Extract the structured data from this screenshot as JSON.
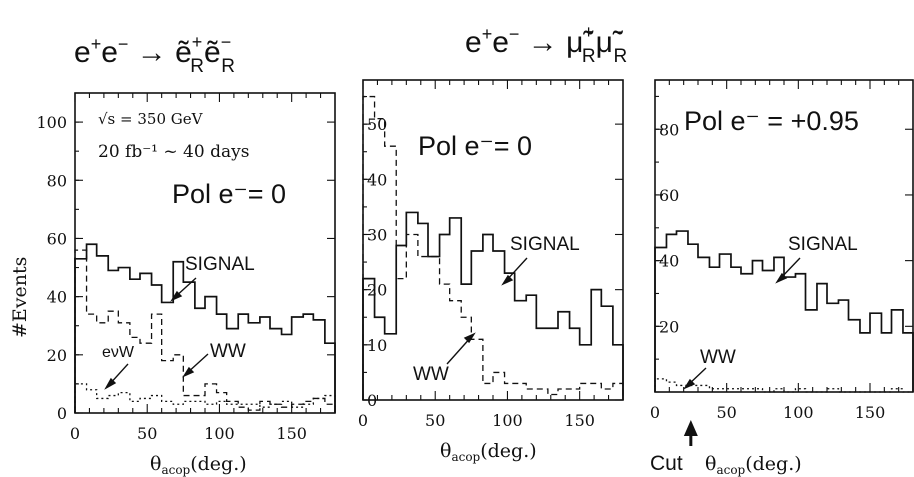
{
  "titles": [
    {
      "base": "e",
      "sup1": "+",
      "mid": "e",
      "sup2": "−",
      "arrow": " → ",
      "p1": "ẽ",
      "p1sup": "+",
      "p1sub": "R",
      "p2": "ẽ",
      "p2sup": "−",
      "p2sub": "R"
    },
    {
      "base": "e",
      "sup1": "+",
      "mid": "e",
      "sup2": "−",
      "arrow": " → ",
      "p1": "μ̃",
      "p1sup": "+",
      "p1sub": "R",
      "p2": "μ̃",
      "p2sup": "−",
      "p2sub": "R"
    }
  ],
  "ylabel": "#Events",
  "cut_label": "Cut",
  "chart_data": [
    {
      "type": "histogram",
      "xlabel_sym": "θ",
      "xlabel_sub": "acop",
      "xlabel_unit": "(deg.)",
      "xlim": [
        0,
        180
      ],
      "ylim": [
        0,
        110
      ],
      "xticks": [
        0,
        50,
        100,
        150
      ],
      "yticks": [
        0,
        20,
        40,
        60,
        80,
        100
      ],
      "texts": {
        "energy": "√s  =  350  GeV",
        "lumi": "20  fb⁻¹  ~ 40 days",
        "pol": "Pol e⁻= 0"
      },
      "bin_edges": [
        0,
        8,
        15,
        23,
        30,
        38,
        45,
        53,
        60,
        68,
        75,
        83,
        90,
        98,
        105,
        113,
        120,
        128,
        135,
        143,
        150,
        158,
        165,
        173,
        180
      ],
      "series": [
        {
          "name": "SIGNAL",
          "style": "solid",
          "values": [
            53,
            58,
            54,
            49,
            50,
            46,
            48,
            44,
            38,
            52,
            45,
            36,
            40,
            34,
            29,
            34,
            31,
            33,
            29,
            27,
            33,
            34,
            32,
            24
          ]
        },
        {
          "name": "WW",
          "style": "dashed",
          "values": [
            56,
            34,
            31,
            35,
            31,
            26,
            24,
            34,
            18,
            20,
            6,
            6,
            10,
            7,
            4,
            2,
            1,
            4,
            3,
            2,
            3,
            4,
            5,
            3
          ]
        },
        {
          "name": "eνW",
          "style": "dotted",
          "values": [
            10,
            8,
            5,
            6,
            7,
            4,
            5,
            6,
            4,
            3,
            4,
            4,
            3,
            4,
            3,
            3,
            3,
            2,
            3,
            4,
            2,
            3,
            5,
            6
          ]
        }
      ],
      "annotations": {
        "signal": "SIGNAL",
        "ww": "WW",
        "evw": "eνW"
      }
    },
    {
      "type": "histogram",
      "xlabel_sym": "θ",
      "xlabel_sub": "acop",
      "xlabel_unit": "(deg.)",
      "xlim": [
        0,
        180
      ],
      "ylim": [
        0,
        58
      ],
      "xticks": [
        0,
        50,
        100,
        150
      ],
      "yticks": [
        0,
        10,
        20,
        30,
        40,
        50
      ],
      "texts": {
        "pol": "Pol e⁻= 0"
      },
      "bin_edges": [
        0,
        8,
        15,
        23,
        30,
        38,
        45,
        53,
        60,
        68,
        75,
        83,
        90,
        98,
        105,
        113,
        120,
        128,
        135,
        143,
        150,
        158,
        165,
        173,
        180
      ],
      "series": [
        {
          "name": "SIGNAL",
          "style": "solid",
          "values": [
            22,
            15,
            12,
            28,
            34,
            32,
            26,
            30,
            33,
            21,
            27,
            30,
            27,
            23,
            18,
            19,
            13,
            13,
            16,
            13,
            10,
            20,
            17,
            10
          ]
        },
        {
          "name": "WW",
          "style": "dashed",
          "values": [
            55,
            51,
            46,
            22,
            30,
            26,
            26,
            21,
            18,
            15,
            11,
            3,
            5,
            3,
            3,
            2,
            2,
            1,
            2,
            2,
            3,
            3,
            2,
            3
          ]
        }
      ],
      "annotations": {
        "signal": "SIGNAL",
        "ww": "WW"
      }
    },
    {
      "type": "histogram",
      "xlabel_sym": "θ",
      "xlabel_sub": "acop",
      "xlabel_unit": "(deg.)",
      "xlim": [
        0,
        180
      ],
      "ylim": [
        0,
        95
      ],
      "xticks": [
        0,
        50,
        100,
        150
      ],
      "yticks": [
        20,
        40,
        60,
        80
      ],
      "texts": {
        "pol": "Pol e⁻ = +0.95"
      },
      "bin_edges": [
        0,
        8,
        15,
        23,
        30,
        38,
        45,
        53,
        60,
        68,
        75,
        83,
        90,
        98,
        105,
        113,
        120,
        128,
        135,
        143,
        150,
        158,
        165,
        173,
        180
      ],
      "series": [
        {
          "name": "SIGNAL",
          "style": "solid",
          "values": [
            44,
            48,
            49,
            45,
            41,
            38,
            42,
            38,
            36,
            40,
            37,
            41,
            35,
            36,
            25,
            33,
            27,
            28,
            22,
            18,
            24,
            18,
            25,
            18
          ]
        },
        {
          "name": "WW",
          "style": "dotted",
          "values": [
            4,
            3,
            2,
            2,
            2,
            1,
            1,
            1,
            1,
            1,
            0,
            1,
            0,
            1,
            0,
            0,
            1,
            0,
            0,
            0,
            0,
            0,
            1,
            0
          ]
        }
      ],
      "annotations": {
        "signal": "SIGNAL",
        "ww": "WW",
        "cut_x": 25
      }
    }
  ]
}
